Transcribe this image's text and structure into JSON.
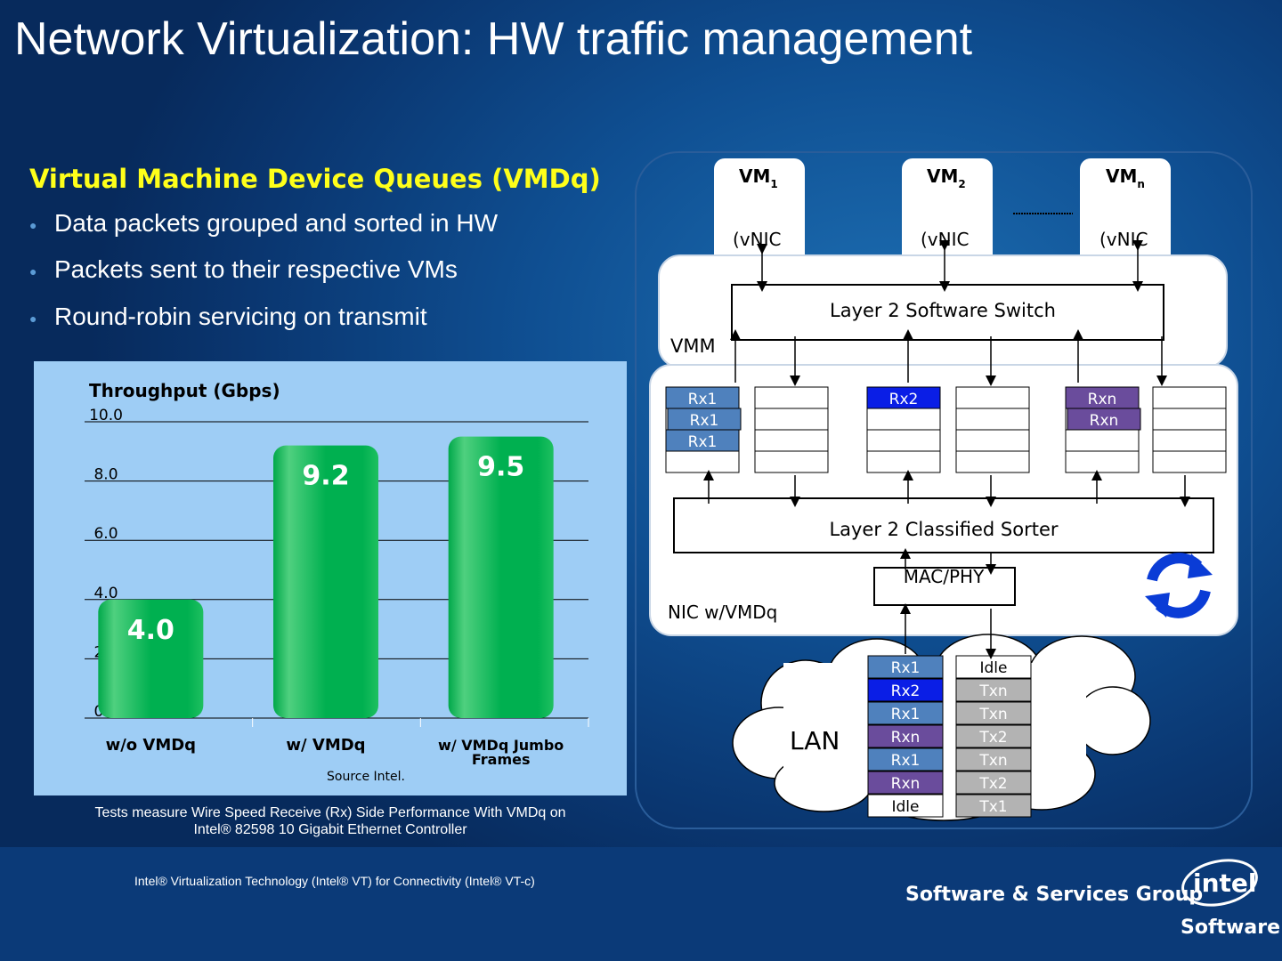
{
  "title": "Network Virtualization: HW traffic management",
  "subtitle": "Virtual Machine Device Queues (VMDq)",
  "bullets": [
    "Data packets grouped and sorted in HW",
    "Packets sent to their respective VMs",
    "Round-robin servicing on transmit"
  ],
  "chart_data": {
    "type": "bar",
    "title": "Throughput (Gbps)",
    "categories": [
      "w/o VMDq",
      "w/ VMDq",
      "w/ VMDq Jumbo Frames"
    ],
    "values": [
      4.0,
      9.2,
      9.5
    ],
    "value_labels": [
      "4.0",
      "9.2",
      "9.5"
    ],
    "yticks": [
      "0.0",
      "2.0",
      "4.0",
      "6.0",
      "8.0",
      "10.0"
    ],
    "ylim": [
      0,
      10
    ],
    "grid": true,
    "bar_color": "#00b050",
    "source": "Source  Intel."
  },
  "footnote_line1": "Tests measure Wire Speed Receive (Rx) Side Performance With VMDq on",
  "footnote_line2": "Intel® 82598 10 Gigabit Ethernet Controller",
  "diagram": {
    "vms": [
      {
        "name": "VM",
        "sub": "1",
        "vnic": "(vNIC"
      },
      {
        "name": "VM",
        "sub": "2",
        "vnic": "(vNIC"
      },
      {
        "name": "VM",
        "sub": "n",
        "vnic": "(vNIC"
      }
    ],
    "vmm_label": "VMM",
    "switch_label": "Layer 2 Software Switch",
    "sorter_label": "Layer 2 Classified Sorter",
    "mac_label": "MAC/PHY",
    "nic_label": "NIC w/VMDq",
    "lan_label": "LAN",
    "rx_queues": [
      [
        "Rx1",
        "Rx1",
        "Rx1"
      ],
      [
        "Rx2"
      ],
      [
        "Rxn",
        "Rxn"
      ]
    ],
    "rx_stack": [
      "Rx1",
      "Rx2",
      "Rx1",
      "Rxn",
      "Rx1",
      "Rxn",
      "Idle"
    ],
    "tx_stack": [
      "Idle",
      "Txn",
      "Txn",
      "Tx2",
      "Txn",
      "Tx2",
      "Tx1"
    ],
    "colors": {
      "rx1": "#4f81bd",
      "rx2": "#0a1ee6",
      "rxn": "#6a4c9c",
      "tx": "#b3b3b3",
      "cycle": "#0a3cd6"
    }
  },
  "footer_note": "Intel® Virtualization Technology (Intel® VT) for Connectivity (Intel® VT-c)",
  "footer_group": "Software & Services Group",
  "logo_text": "intel",
  "logo_sub": "Software"
}
